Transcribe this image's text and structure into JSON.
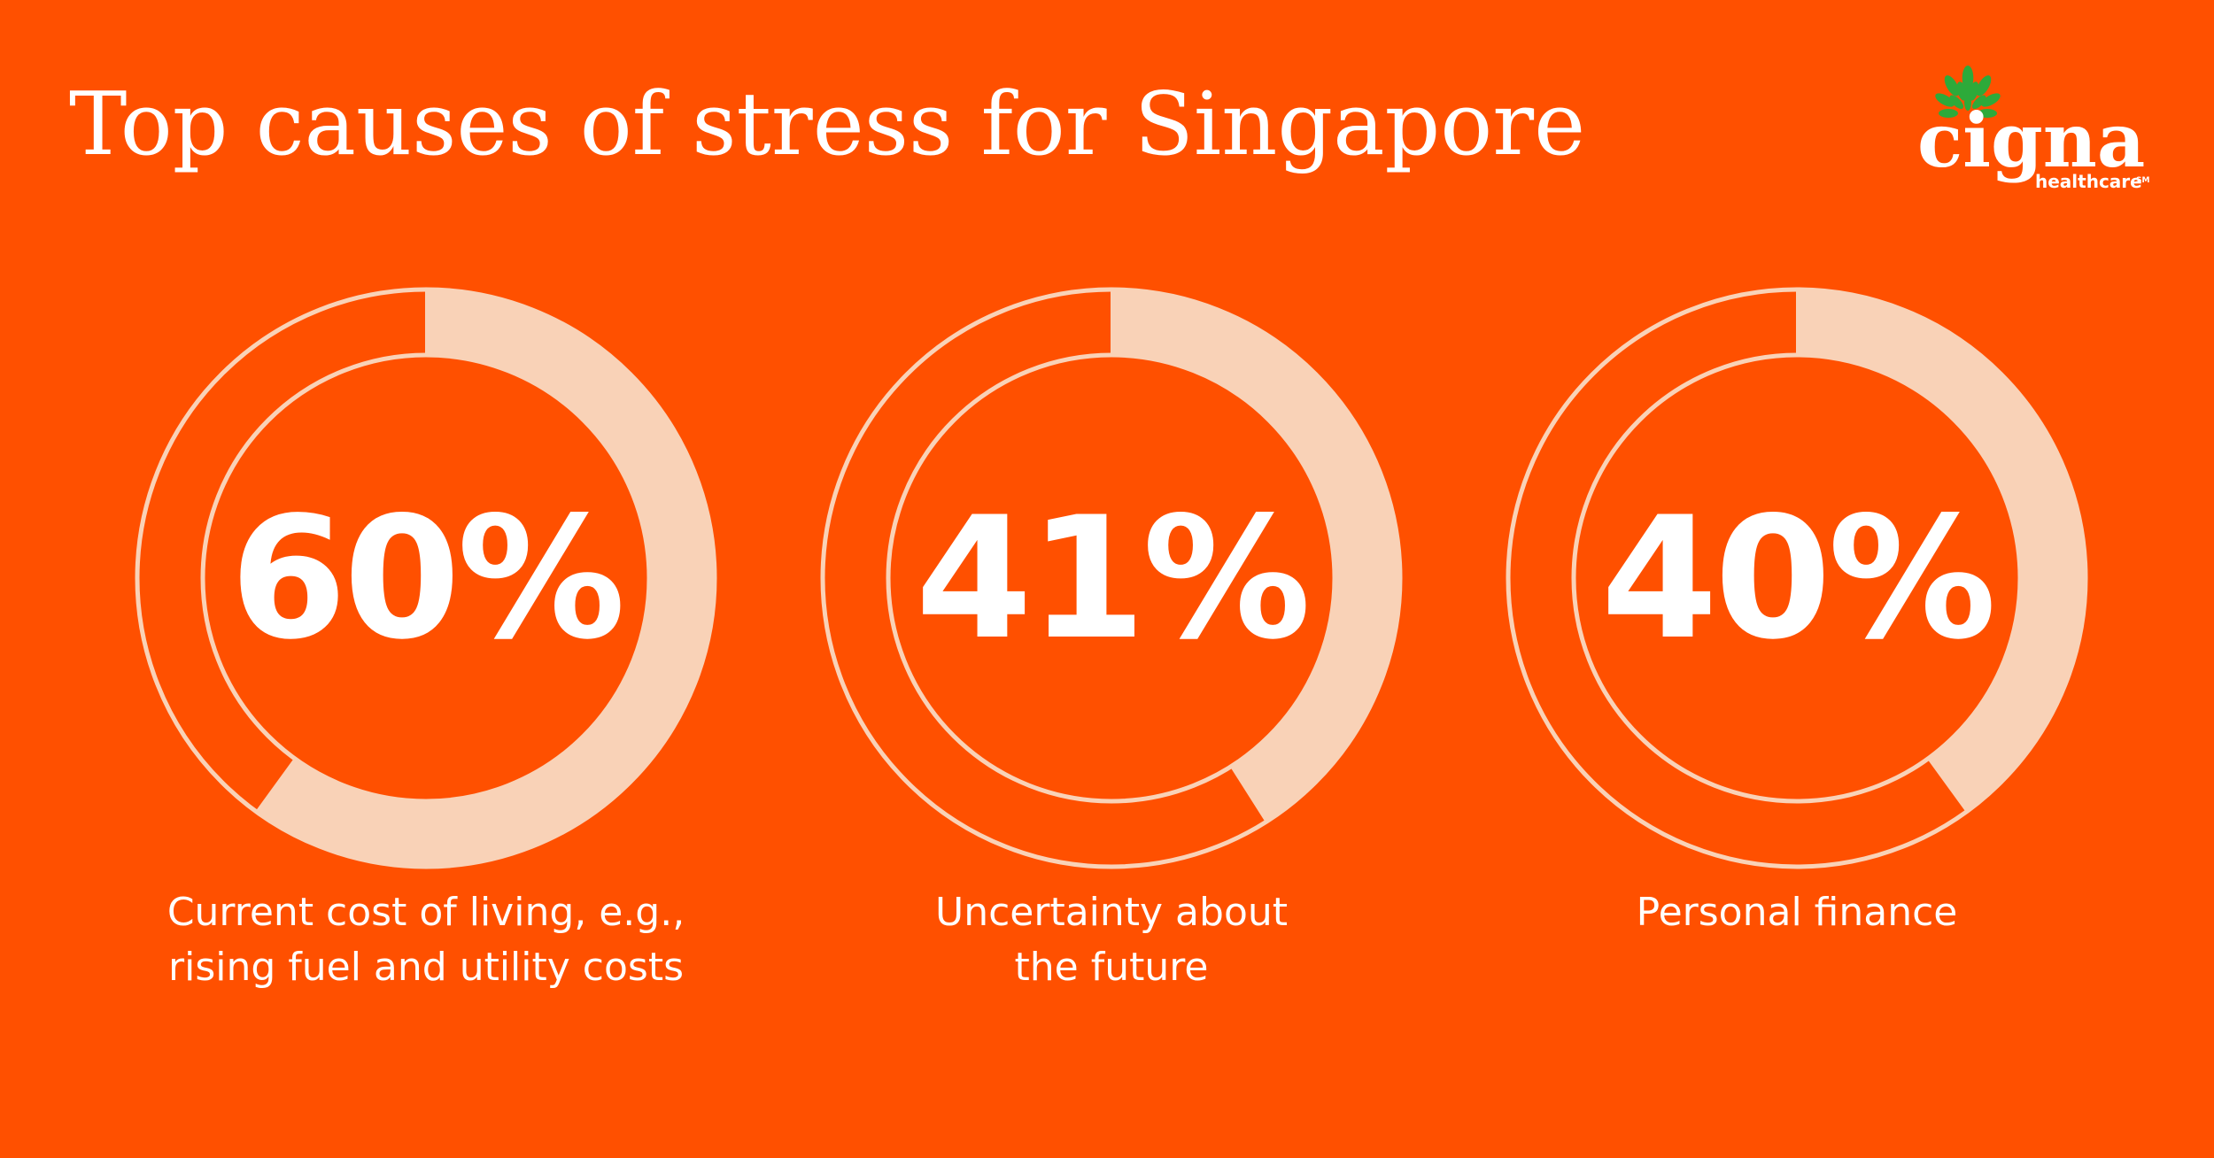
{
  "background_color": "#FF5000",
  "accent_color": "#F9D2B7",
  "title": "Top causes of stress for Singapore",
  "logo": {
    "wordmark": "cigna",
    "sub": "healthcare",
    "mark": "SM",
    "leaf_color": "#2DAA3A"
  },
  "chart_data": {
    "type": "pie",
    "title": "Top causes of stress for Singapore",
    "unit": "%",
    "items": [
      {
        "value": 60,
        "value_label": "60%",
        "label_lines": [
          "Current cost of living, e.g.,",
          "rising fuel and utility costs"
        ]
      },
      {
        "value": 41,
        "value_label": "41%",
        "label_lines": [
          "Uncertainty about",
          "the future"
        ]
      },
      {
        "value": 40,
        "value_label": "40%",
        "label_lines": [
          "Personal finance"
        ]
      }
    ]
  }
}
